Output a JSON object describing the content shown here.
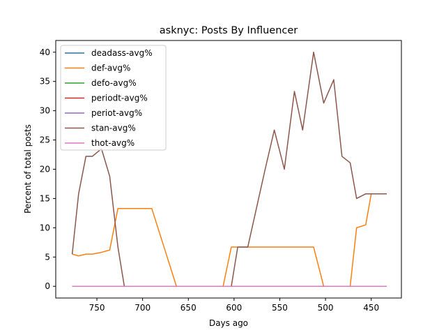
{
  "chart_data": {
    "type": "line",
    "title": "asknyc: Posts By Influencer",
    "xlabel": "Days ago",
    "ylabel": "Percent of total posts",
    "xlim": [
      795,
      417
    ],
    "ylim": [
      -2,
      42
    ],
    "x_inverted": true,
    "xticks": [
      750,
      700,
      650,
      600,
      550,
      500,
      450
    ],
    "yticks": [
      0,
      5,
      10,
      15,
      20,
      25,
      30,
      35,
      40
    ],
    "grid": false,
    "legend_position": "top-left",
    "x": [
      777,
      770,
      762,
      755,
      745,
      736,
      727,
      720,
      710,
      690,
      663,
      612,
      603,
      596,
      585,
      566,
      556,
      545,
      534,
      525,
      513,
      502,
      491,
      482,
      473,
      466,
      456,
      450,
      433
    ],
    "series": [
      {
        "name": "deadass-avg%",
        "color": "#1f77b4",
        "values": [
          0,
          0,
          0,
          0,
          0,
          0,
          0,
          0,
          0,
          0,
          0,
          0,
          0,
          0,
          0,
          0,
          0,
          0,
          0,
          0,
          0,
          0,
          0,
          0,
          0,
          0,
          0,
          0,
          0
        ]
      },
      {
        "name": "def-avg%",
        "color": "#ff7f0e",
        "values": [
          5.5,
          5.2,
          5.5,
          5.5,
          5.8,
          6.2,
          13.3,
          13.3,
          13.3,
          13.3,
          0,
          0,
          6.7,
          6.7,
          6.7,
          6.7,
          6.7,
          6.7,
          6.7,
          6.7,
          6.7,
          0,
          0,
          0,
          0,
          10,
          10.5,
          15.8,
          15.8
        ]
      },
      {
        "name": "defo-avg%",
        "color": "#2ca02c",
        "values": [
          0,
          0,
          0,
          0,
          0,
          0,
          0,
          0,
          0,
          0,
          0,
          0,
          0,
          0,
          0,
          0,
          0,
          0,
          0,
          0,
          0,
          0,
          0,
          0,
          0,
          0,
          0,
          0,
          0
        ]
      },
      {
        "name": "periodt-avg%",
        "color": "#d62728",
        "values": [
          0,
          0,
          0,
          0,
          0,
          0,
          0,
          0,
          0,
          0,
          0,
          0,
          0,
          0,
          0,
          0,
          0,
          0,
          0,
          0,
          0,
          0,
          0,
          0,
          0,
          0,
          0,
          0,
          0
        ]
      },
      {
        "name": "periot-avg%",
        "color": "#9467bd",
        "values": [
          0,
          0,
          0,
          0,
          0,
          0,
          0,
          0,
          0,
          0,
          0,
          0,
          0,
          0,
          0,
          0,
          0,
          0,
          0,
          0,
          0,
          0,
          0,
          0,
          0,
          0,
          0,
          0,
          0
        ]
      },
      {
        "name": "stan-avg%",
        "color": "#8c564b",
        "values": [
          5.5,
          15.8,
          22.2,
          22.2,
          23.5,
          18.8,
          6.7,
          0,
          0,
          0,
          0,
          0,
          0,
          6.7,
          6.7,
          20,
          26.7,
          20,
          33.3,
          26.7,
          40,
          31.3,
          35.3,
          22.2,
          21.1,
          15,
          15.8,
          15.8,
          15.8
        ]
      },
      {
        "name": "thot-avg%",
        "color": "#e377c2",
        "values": [
          0,
          0,
          0,
          0,
          0,
          0,
          0,
          0,
          0,
          0,
          0,
          0,
          0,
          0,
          0,
          0,
          0,
          0,
          0,
          0,
          0,
          0,
          0,
          0,
          0,
          0,
          0,
          0,
          0
        ]
      }
    ]
  }
}
